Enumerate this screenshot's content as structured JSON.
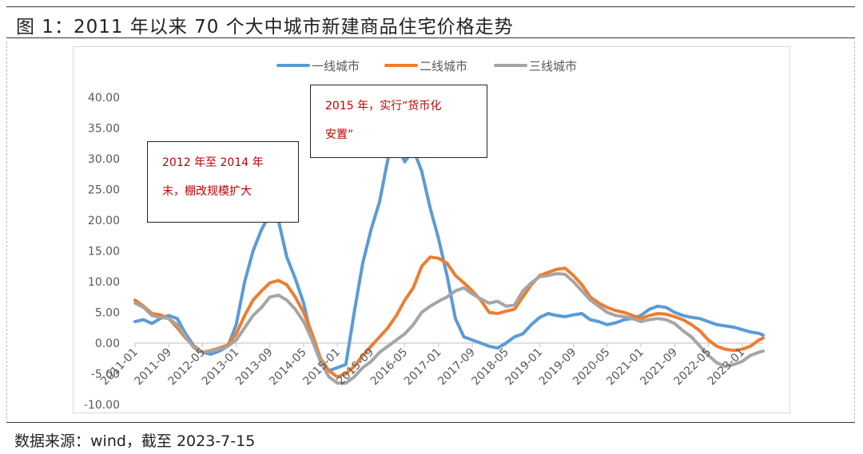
{
  "figure_title": "图 1：2011 年以来 70 个大中城市新建商品住宅价格走势",
  "source_note": "数据来源：wind，截至 2023-7-15",
  "annotations": [
    {
      "line1": "2012 年至 2014 年",
      "line2": "末，棚改规模扩大"
    },
    {
      "line1": "2015 年，实行“货币化",
      "line2": "安置”"
    }
  ],
  "colors": {
    "tier1": "#5b9bd5",
    "tier2": "#ed7d31",
    "tier3": "#a5a5a5"
  },
  "chart_data": {
    "type": "line",
    "title": "",
    "xlabel": "",
    "ylabel": "",
    "ylim": [
      -10,
      40
    ],
    "yticks": [
      "-10.00",
      "-5.00",
      "0.00",
      "5.00",
      "10.00",
      "15.00",
      "20.00",
      "25.00",
      "30.00",
      "35.00",
      "40.00"
    ],
    "x_tick_labels": [
      "2011-01",
      "2011-09",
      "2012-05",
      "2013-01",
      "2013-09",
      "2014-05",
      "2015-01",
      "2015-09",
      "2016-05",
      "2017-01",
      "2017-09",
      "2018-05",
      "2019-01",
      "2019-09",
      "2020-05",
      "2021-01",
      "2021-09",
      "2022-05",
      "2023-01"
    ],
    "x_start": "2011-01",
    "legend_position": "top",
    "grid": false,
    "series": [
      {
        "name": "一线城市",
        "color": "#5b9bd5",
        "points": [
          [
            "2011-01",
            3.5
          ],
          [
            "2011-03",
            3.8
          ],
          [
            "2011-05",
            3.2
          ],
          [
            "2011-07",
            4.0
          ],
          [
            "2011-09",
            4.5
          ],
          [
            "2011-11",
            4.0
          ],
          [
            "2012-01",
            1.5
          ],
          [
            "2012-03",
            -0.5
          ],
          [
            "2012-05",
            -1.5
          ],
          [
            "2012-07",
            -1.8
          ],
          [
            "2012-09",
            -1.3
          ],
          [
            "2012-11",
            -0.5
          ],
          [
            "2013-01",
            3.0
          ],
          [
            "2013-03",
            10.0
          ],
          [
            "2013-05",
            15.0
          ],
          [
            "2013-07",
            18.5
          ],
          [
            "2013-09",
            21.0
          ],
          [
            "2013-11",
            20.0
          ],
          [
            "2014-01",
            14.0
          ],
          [
            "2014-03",
            10.5
          ],
          [
            "2014-05",
            6.5
          ],
          [
            "2014-07",
            0.5
          ],
          [
            "2014-09",
            -3.0
          ],
          [
            "2014-11",
            -4.5
          ],
          [
            "2015-01",
            -4.0
          ],
          [
            "2015-03",
            -3.5
          ],
          [
            "2015-05",
            5.0
          ],
          [
            "2015-07",
            13.0
          ],
          [
            "2015-09",
            18.5
          ],
          [
            "2015-11",
            23.0
          ],
          [
            "2016-01",
            30.0
          ],
          [
            "2016-03",
            32.5
          ],
          [
            "2016-05",
            29.5
          ],
          [
            "2016-07",
            31.5
          ],
          [
            "2016-09",
            28.0
          ],
          [
            "2016-11",
            22.0
          ],
          [
            "2017-01",
            17.0
          ],
          [
            "2017-03",
            11.0
          ],
          [
            "2017-05",
            4.0
          ],
          [
            "2017-07",
            1.0
          ],
          [
            "2017-09",
            0.5
          ],
          [
            "2017-11",
            0.0
          ],
          [
            "2018-01",
            -0.5
          ],
          [
            "2018-03",
            -0.8
          ],
          [
            "2018-05",
            0.0
          ],
          [
            "2018-07",
            1.0
          ],
          [
            "2018-09",
            1.5
          ],
          [
            "2018-11",
            3.0
          ],
          [
            "2019-01",
            4.2
          ],
          [
            "2019-03",
            4.8
          ],
          [
            "2019-05",
            4.5
          ],
          [
            "2019-07",
            4.3
          ],
          [
            "2019-09",
            4.6
          ],
          [
            "2019-11",
            4.8
          ],
          [
            "2020-01",
            3.8
          ],
          [
            "2020-03",
            3.5
          ],
          [
            "2020-05",
            3.0
          ],
          [
            "2020-07",
            3.3
          ],
          [
            "2020-09",
            3.8
          ],
          [
            "2020-11",
            4.0
          ],
          [
            "2021-01",
            4.5
          ],
          [
            "2021-03",
            5.5
          ],
          [
            "2021-05",
            6.0
          ],
          [
            "2021-07",
            5.8
          ],
          [
            "2021-09",
            5.0
          ],
          [
            "2021-11",
            4.5
          ],
          [
            "2022-01",
            4.2
          ],
          [
            "2022-03",
            4.0
          ],
          [
            "2022-05",
            3.5
          ],
          [
            "2022-07",
            3.0
          ],
          [
            "2022-09",
            2.8
          ],
          [
            "2022-11",
            2.6
          ],
          [
            "2023-01",
            2.2
          ],
          [
            "2023-03",
            1.8
          ],
          [
            "2023-05",
            1.6
          ],
          [
            "2023-06",
            1.3
          ]
        ]
      },
      {
        "name": "二线城市",
        "color": "#ed7d31",
        "points": [
          [
            "2011-01",
            7.0
          ],
          [
            "2011-03",
            6.0
          ],
          [
            "2011-05",
            4.8
          ],
          [
            "2011-07",
            4.6
          ],
          [
            "2011-09",
            4.0
          ],
          [
            "2011-11",
            2.5
          ],
          [
            "2012-01",
            0.8
          ],
          [
            "2012-03",
            -0.5
          ],
          [
            "2012-05",
            -1.5
          ],
          [
            "2012-07",
            -1.2
          ],
          [
            "2012-09",
            -0.8
          ],
          [
            "2012-11",
            -0.3
          ],
          [
            "2013-01",
            1.5
          ],
          [
            "2013-03",
            4.5
          ],
          [
            "2013-05",
            7.0
          ],
          [
            "2013-07",
            8.5
          ],
          [
            "2013-09",
            9.8
          ],
          [
            "2013-11",
            10.2
          ],
          [
            "2014-01",
            9.5
          ],
          [
            "2014-03",
            7.5
          ],
          [
            "2014-05",
            5.0
          ],
          [
            "2014-07",
            1.5
          ],
          [
            "2014-09",
            -2.5
          ],
          [
            "2014-11",
            -4.5
          ],
          [
            "2015-01",
            -5.5
          ],
          [
            "2015-03",
            -5.0
          ],
          [
            "2015-05",
            -3.8
          ],
          [
            "2015-07",
            -2.0
          ],
          [
            "2015-09",
            -0.5
          ],
          [
            "2015-11",
            1.0
          ],
          [
            "2016-01",
            2.5
          ],
          [
            "2016-03",
            4.5
          ],
          [
            "2016-05",
            7.0
          ],
          [
            "2016-07",
            9.0
          ],
          [
            "2016-09",
            12.5
          ],
          [
            "2016-11",
            14.0
          ],
          [
            "2017-01",
            13.8
          ],
          [
            "2017-03",
            13.0
          ],
          [
            "2017-05",
            11.0
          ],
          [
            "2017-07",
            9.8
          ],
          [
            "2017-09",
            8.5
          ],
          [
            "2017-11",
            7.0
          ],
          [
            "2018-01",
            5.0
          ],
          [
            "2018-03",
            4.8
          ],
          [
            "2018-05",
            5.2
          ],
          [
            "2018-07",
            5.5
          ],
          [
            "2018-09",
            7.5
          ],
          [
            "2018-11",
            9.5
          ],
          [
            "2019-01",
            11.0
          ],
          [
            "2019-03",
            11.5
          ],
          [
            "2019-05",
            12.0
          ],
          [
            "2019-07",
            12.2
          ],
          [
            "2019-09",
            11.0
          ],
          [
            "2019-11",
            9.5
          ],
          [
            "2020-01",
            7.5
          ],
          [
            "2020-03",
            6.5
          ],
          [
            "2020-05",
            5.8
          ],
          [
            "2020-07",
            5.3
          ],
          [
            "2020-09",
            5.0
          ],
          [
            "2020-11",
            4.5
          ],
          [
            "2021-01",
            4.0
          ],
          [
            "2021-03",
            4.5
          ],
          [
            "2021-05",
            4.8
          ],
          [
            "2021-07",
            4.7
          ],
          [
            "2021-09",
            4.3
          ],
          [
            "2021-11",
            3.8
          ],
          [
            "2022-01",
            3.0
          ],
          [
            "2022-03",
            2.0
          ],
          [
            "2022-05",
            0.5
          ],
          [
            "2022-07",
            -0.5
          ],
          [
            "2022-09",
            -1.0
          ],
          [
            "2022-11",
            -1.2
          ],
          [
            "2023-01",
            -1.0
          ],
          [
            "2023-03",
            -0.5
          ],
          [
            "2023-05",
            0.5
          ],
          [
            "2023-06",
            0.8
          ]
        ]
      },
      {
        "name": "三线城市",
        "color": "#a5a5a5",
        "points": [
          [
            "2011-01",
            6.5
          ],
          [
            "2011-03",
            5.8
          ],
          [
            "2011-05",
            4.5
          ],
          [
            "2011-07",
            4.2
          ],
          [
            "2011-09",
            4.0
          ],
          [
            "2011-11",
            3.0
          ],
          [
            "2012-01",
            1.0
          ],
          [
            "2012-03",
            -0.8
          ],
          [
            "2012-05",
            -1.5
          ],
          [
            "2012-07",
            -1.3
          ],
          [
            "2012-09",
            -1.0
          ],
          [
            "2012-11",
            -0.5
          ],
          [
            "2013-01",
            0.5
          ],
          [
            "2013-03",
            2.5
          ],
          [
            "2013-05",
            4.5
          ],
          [
            "2013-07",
            5.8
          ],
          [
            "2013-09",
            7.5
          ],
          [
            "2013-11",
            7.8
          ],
          [
            "2014-01",
            7.0
          ],
          [
            "2014-03",
            5.5
          ],
          [
            "2014-05",
            3.5
          ],
          [
            "2014-07",
            0.5
          ],
          [
            "2014-09",
            -3.0
          ],
          [
            "2014-11",
            -5.5
          ],
          [
            "2015-01",
            -6.5
          ],
          [
            "2015-03",
            -6.5
          ],
          [
            "2015-05",
            -5.5
          ],
          [
            "2015-07",
            -4.0
          ],
          [
            "2015-09",
            -3.0
          ],
          [
            "2015-11",
            -1.5
          ],
          [
            "2016-01",
            -0.5
          ],
          [
            "2016-03",
            0.5
          ],
          [
            "2016-05",
            1.5
          ],
          [
            "2016-07",
            3.0
          ],
          [
            "2016-09",
            5.0
          ],
          [
            "2016-11",
            6.0
          ],
          [
            "2017-01",
            6.8
          ],
          [
            "2017-03",
            7.5
          ],
          [
            "2017-05",
            8.5
          ],
          [
            "2017-07",
            9.0
          ],
          [
            "2017-09",
            8.0
          ],
          [
            "2017-11",
            7.2
          ],
          [
            "2018-01",
            6.5
          ],
          [
            "2018-03",
            6.8
          ],
          [
            "2018-05",
            6.0
          ],
          [
            "2018-07",
            6.2
          ],
          [
            "2018-09",
            8.5
          ],
          [
            "2018-11",
            9.8
          ],
          [
            "2019-01",
            10.8
          ],
          [
            "2019-03",
            11.0
          ],
          [
            "2019-05",
            11.3
          ],
          [
            "2019-07",
            11.2
          ],
          [
            "2019-09",
            10.0
          ],
          [
            "2019-11",
            8.5
          ],
          [
            "2020-01",
            7.0
          ],
          [
            "2020-03",
            6.0
          ],
          [
            "2020-05",
            5.0
          ],
          [
            "2020-07",
            4.5
          ],
          [
            "2020-09",
            4.3
          ],
          [
            "2020-11",
            4.0
          ],
          [
            "2021-01",
            3.5
          ],
          [
            "2021-03",
            3.8
          ],
          [
            "2021-05",
            4.0
          ],
          [
            "2021-07",
            3.8
          ],
          [
            "2021-09",
            3.2
          ],
          [
            "2021-11",
            2.0
          ],
          [
            "2022-01",
            1.0
          ],
          [
            "2022-03",
            -0.5
          ],
          [
            "2022-05",
            -2.0
          ],
          [
            "2022-07",
            -3.2
          ],
          [
            "2022-09",
            -3.8
          ],
          [
            "2022-11",
            -3.5
          ],
          [
            "2023-01",
            -3.0
          ],
          [
            "2023-03",
            -2.0
          ],
          [
            "2023-05",
            -1.5
          ],
          [
            "2023-06",
            -1.3
          ]
        ]
      }
    ]
  }
}
